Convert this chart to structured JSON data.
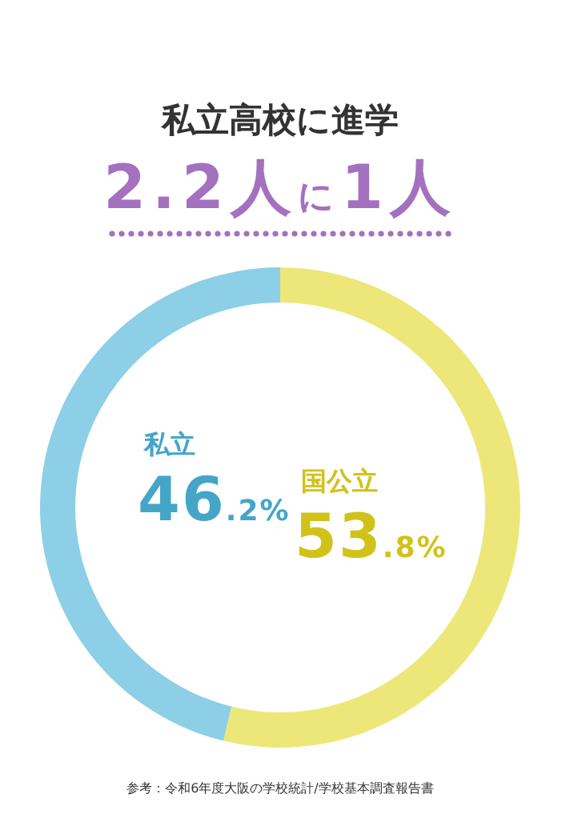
{
  "chart_data": {
    "type": "donut",
    "title": "私立高校に進学",
    "subtitle": "2.2人に1人",
    "categories": [
      "私立",
      "国公立"
    ],
    "values": [
      46.2,
      53.8
    ],
    "colors": [
      "#8ccfe6",
      "#ede77a"
    ],
    "value_labels": [
      "46.2%",
      "53.8%"
    ],
    "annotations": [
      "参考：令和6年度大阪の学校統計/学校基本調査報告書"
    ]
  }
}
